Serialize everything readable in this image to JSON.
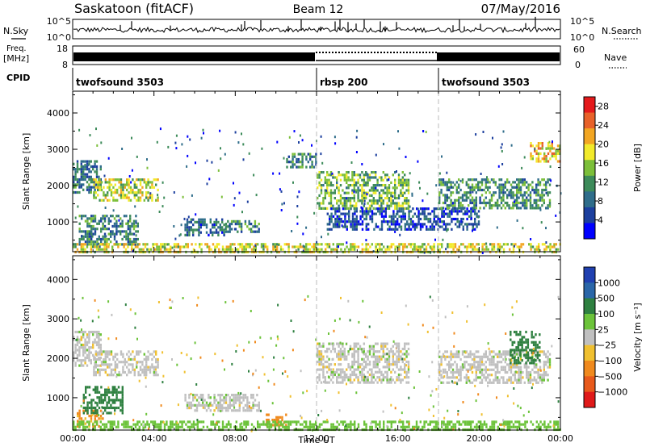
{
  "header": {
    "station": "Saskatoon (fitACF)",
    "beam": "Beam 12",
    "date": "07/May/2016"
  },
  "labels": {
    "nsky": "N.Sky",
    "freq_line1": "Freq.",
    "freq_line2": "[MHz]",
    "cpid": "CPID",
    "nsearch": "N.Search",
    "nave": "Nave",
    "nsky_ticks": [
      "10^5",
      "10^0"
    ],
    "nsearch_ticks": [
      "10^5",
      "10^0"
    ],
    "freq_ticks": [
      "18",
      "8"
    ],
    "nave_ticks": [
      "60",
      "0"
    ]
  },
  "cpid_segments": [
    {
      "label": "twofsound 3503",
      "start_hour": 0
    },
    {
      "label": "rbsp 200",
      "start_hour": 12
    },
    {
      "label": "twofsound 3503",
      "start_hour": 18
    }
  ],
  "colors": {
    "power_scale": [
      "#0000ff",
      "#1c3f9e",
      "#2f6d8a",
      "#3d8b5a",
      "#7cbf3a",
      "#f2ea2b",
      "#f2a623",
      "#e8622a",
      "#e41a1c"
    ],
    "velocity_scale": [
      "#2040b0",
      "#2a66a8",
      "#2e8040",
      "#6cc33a",
      "#c0c0c0",
      "#f0c030",
      "#f08a1e",
      "#e85a1c",
      "#e01a1a"
    ]
  },
  "chart_data": [
    {
      "type": "heatmap",
      "title": "",
      "xlabel": "",
      "ylabel": "Slant Range [km]",
      "x_tick_labels": [
        "00:00",
        "04:00",
        "08:00",
        "12:00",
        "16:00",
        "20:00",
        "00:00"
      ],
      "xlim": [
        0,
        24
      ],
      "ylim": [
        180,
        4600
      ],
      "y_ticks": [
        "1000",
        "2000",
        "3000",
        "4000"
      ],
      "y_tick_values": [
        1000,
        2000,
        3000,
        4000
      ],
      "colorbar": {
        "label": "Power [dB]",
        "ticks": [
          "4",
          "8",
          "12",
          "16",
          "20",
          "24",
          "28"
        ],
        "range": [
          0,
          30
        ]
      },
      "regions": [
        {
          "t0": 0.0,
          "t1": 1.4,
          "r0": 1800,
          "r1": 2700,
          "value": 9
        },
        {
          "t0": 1.0,
          "t1": 4.2,
          "r0": 1600,
          "r1": 2200,
          "value": 17
        },
        {
          "t0": 0.3,
          "t1": 3.2,
          "r0": 400,
          "r1": 1200,
          "value": 10
        },
        {
          "t0": 5.5,
          "t1": 7.5,
          "r0": 650,
          "r1": 1100,
          "value": 8
        },
        {
          "t0": 7.5,
          "t1": 9.2,
          "r0": 700,
          "r1": 1050,
          "value": 10
        },
        {
          "t0": 10.5,
          "t1": 12.0,
          "r0": 2500,
          "r1": 2900,
          "value": 9
        },
        {
          "t0": 12.0,
          "t1": 16.5,
          "r0": 1400,
          "r1": 2400,
          "value": 14
        },
        {
          "t0": 12.5,
          "t1": 20.0,
          "r0": 800,
          "r1": 1400,
          "value": 6
        },
        {
          "t0": 18.0,
          "t1": 23.5,
          "r0": 1400,
          "r1": 2200,
          "value": 11
        },
        {
          "t0": 22.5,
          "t1": 24.0,
          "r0": 2700,
          "r1": 3200,
          "value": 20
        },
        {
          "t0": 0.0,
          "t1": 24.0,
          "r0": 180,
          "r1": 420,
          "value": 18
        }
      ]
    },
    {
      "type": "heatmap",
      "title": "",
      "xlabel": "Time UT",
      "ylabel": "Slant Range [km]",
      "x_tick_labels": [
        "00:00",
        "04:00",
        "08:00",
        "12:00",
        "16:00",
        "20:00",
        "00:00"
      ],
      "xlim": [
        0,
        24
      ],
      "ylim": [
        180,
        4600
      ],
      "y_ticks": [
        "1000",
        "2000",
        "3000",
        "4000"
      ],
      "y_tick_values": [
        1000,
        2000,
        3000,
        4000
      ],
      "colorbar": {
        "label": "Velocity [m s⁻¹]",
        "ticks": [
          "1000",
          "500",
          "100",
          "25",
          "−25",
          "−100",
          "−500",
          "−1000"
        ]
      },
      "regions": [
        {
          "t0": 0.0,
          "t1": 1.4,
          "r0": 1800,
          "r1": 2700,
          "value": 0
        },
        {
          "t0": 1.0,
          "t1": 4.2,
          "r0": 1600,
          "r1": 2200,
          "value": 0
        },
        {
          "t0": 0.2,
          "t1": 1.5,
          "r0": 250,
          "r1": 700,
          "value": -120
        },
        {
          "t0": 0.5,
          "t1": 2.5,
          "r0": 600,
          "r1": 1300,
          "value": 150
        },
        {
          "t0": 5.5,
          "t1": 9.2,
          "r0": 650,
          "r1": 1100,
          "value": 0
        },
        {
          "t0": 12.0,
          "t1": 16.5,
          "r0": 1400,
          "r1": 2400,
          "value": 0
        },
        {
          "t0": 18.0,
          "t1": 23.5,
          "r0": 1400,
          "r1": 2200,
          "value": 0
        },
        {
          "t0": 21.5,
          "t1": 23.0,
          "r0": 1900,
          "r1": 2700,
          "value": 200
        },
        {
          "t0": 9.5,
          "t1": 10.5,
          "r0": 300,
          "r1": 600,
          "value": -150
        },
        {
          "t0": 0.0,
          "t1": 24.0,
          "r0": 180,
          "r1": 420,
          "value": 60
        }
      ]
    }
  ]
}
